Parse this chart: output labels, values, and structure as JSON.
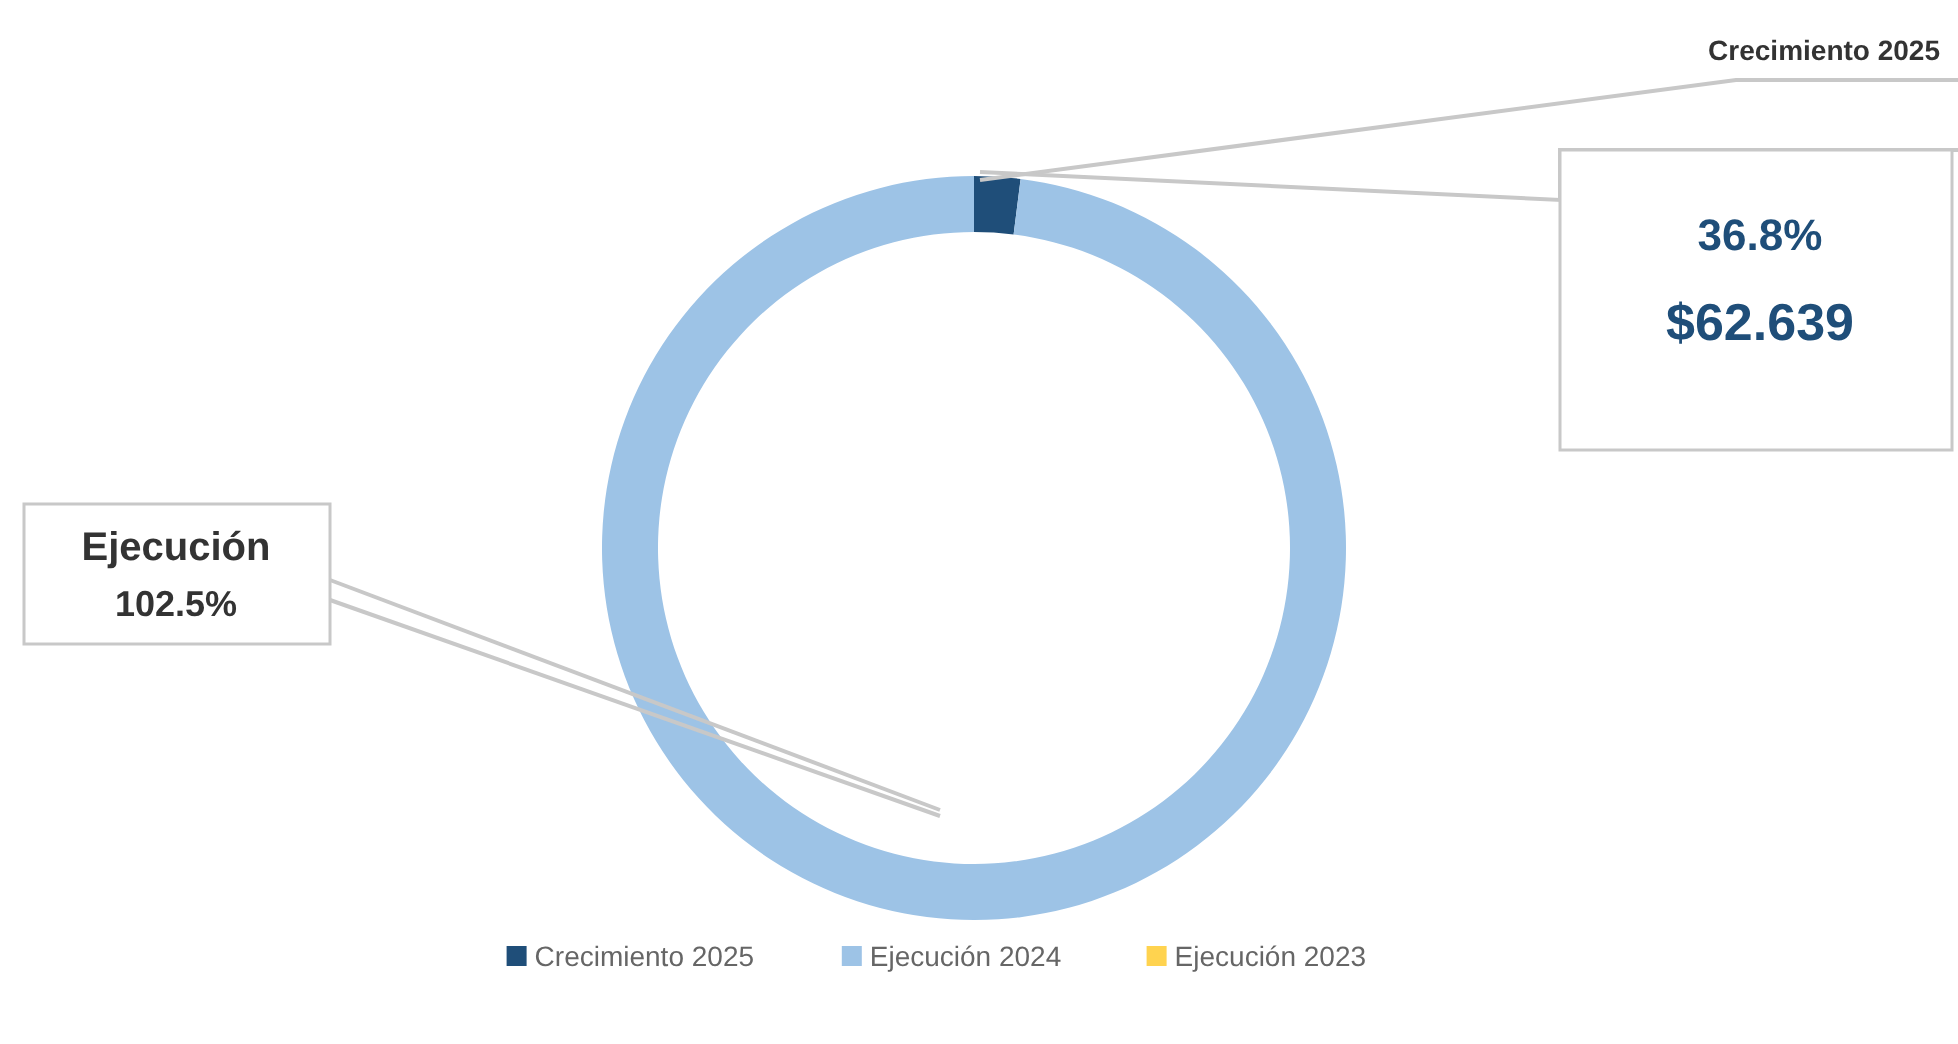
{
  "chart_data": {
    "type": "donut",
    "categories": [
      "Crecimiento 2025",
      "Ejecución 2024",
      "Ejecución 2023"
    ],
    "values": [
      2,
      98,
      0
    ],
    "colors": [
      "#1f4e79",
      "#9dc3e6",
      "#ffd34f"
    ],
    "legend": "bottom",
    "annotations": [
      "Crecimiento 2025",
      "36.8%",
      "$62.639",
      "Ejecución",
      "102.5%"
    ]
  }
}
